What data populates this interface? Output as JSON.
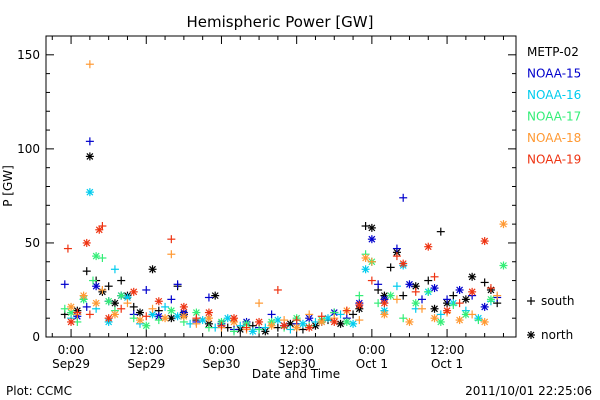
{
  "chart_data": {
    "type": "scatter",
    "title": "Hemispheric Power [GW]",
    "ylabel": "P [GW]",
    "xlabel": "Date and Time",
    "ylim": [
      0,
      160
    ],
    "yticks": [
      0,
      50,
      100,
      150
    ],
    "xlim": [
      -4,
      71
    ],
    "xticks": [
      {
        "x": 0,
        "time": "0:00",
        "date": "Sep29"
      },
      {
        "x": 12,
        "time": "12:00",
        "date": "Sep29"
      },
      {
        "x": 24,
        "time": "0:00",
        "date": "Sep30"
      },
      {
        "x": 36,
        "time": "12:00",
        "date": "Sep30"
      },
      {
        "x": 48,
        "time": "0:00",
        "date": "Oct 1"
      },
      {
        "x": 60,
        "time": "12:00",
        "date": "Oct 1"
      }
    ],
    "x_units": "hours from 2011-09-29 00:00 UT",
    "markers_legend": [
      {
        "symbol": "+",
        "label": "south"
      },
      {
        "symbol": "*",
        "label": "north"
      }
    ],
    "series": [
      {
        "name": "METP-02",
        "color": "#000000",
        "points": [
          [
            -1,
            12,
            "s"
          ],
          [
            1,
            14,
            "n"
          ],
          [
            2.5,
            35,
            "s"
          ],
          [
            3,
            96,
            "n"
          ],
          [
            4,
            30,
            "s"
          ],
          [
            5,
            24,
            "n"
          ],
          [
            6,
            27,
            "s"
          ],
          [
            7,
            18,
            "n"
          ],
          [
            8,
            30,
            "s"
          ],
          [
            9,
            22,
            "n"
          ],
          [
            10,
            16,
            "s"
          ],
          [
            11,
            13,
            "n"
          ],
          [
            13,
            36,
            "n"
          ],
          [
            14,
            14,
            "s"
          ],
          [
            16,
            10,
            "n"
          ],
          [
            17,
            27,
            "s"
          ],
          [
            18,
            12,
            "n"
          ],
          [
            20,
            9,
            "s"
          ],
          [
            22,
            7,
            "n"
          ],
          [
            23,
            22,
            "n"
          ],
          [
            25,
            5,
            "s"
          ],
          [
            27,
            4,
            "n"
          ],
          [
            29,
            6,
            "s"
          ],
          [
            31,
            3,
            "n"
          ],
          [
            33,
            5,
            "s"
          ],
          [
            35,
            7,
            "n"
          ],
          [
            37,
            4,
            "s"
          ],
          [
            39,
            6,
            "n"
          ],
          [
            41,
            9,
            "s"
          ],
          [
            43,
            7,
            "n"
          ],
          [
            45,
            12,
            "s"
          ],
          [
            46,
            15,
            "n"
          ],
          [
            47,
            59,
            "s"
          ],
          [
            48,
            58,
            "n"
          ],
          [
            49,
            25,
            "s"
          ],
          [
            50,
            22,
            "n"
          ],
          [
            51,
            37,
            "s"
          ],
          [
            52,
            45,
            "n"
          ],
          [
            53,
            22,
            "s"
          ],
          [
            55,
            27,
            "n"
          ],
          [
            57,
            30,
            "s"
          ],
          [
            58,
            15,
            "n"
          ],
          [
            59,
            56,
            "s"
          ],
          [
            60,
            18,
            "n"
          ],
          [
            61,
            22,
            "s"
          ],
          [
            63,
            20,
            "n"
          ],
          [
            64,
            32,
            "n"
          ],
          [
            66,
            29,
            "s"
          ],
          [
            67,
            25,
            "n"
          ],
          [
            68,
            18,
            "s"
          ]
        ]
      },
      {
        "name": "NOAA-15",
        "color": "#0000cc",
        "points": [
          [
            -1,
            28,
            "s"
          ],
          [
            1,
            11,
            "n"
          ],
          [
            2.5,
            16,
            "s"
          ],
          [
            3,
            104,
            "s"
          ],
          [
            4,
            27,
            "n"
          ],
          [
            6,
            19,
            "s"
          ],
          [
            8,
            22,
            "n"
          ],
          [
            10,
            12,
            "s"
          ],
          [
            12,
            25,
            "s"
          ],
          [
            14,
            11,
            "n"
          ],
          [
            16,
            20,
            "s"
          ],
          [
            17,
            28,
            "s"
          ],
          [
            18,
            13,
            "n"
          ],
          [
            20,
            8,
            "s"
          ],
          [
            22,
            21,
            "s"
          ],
          [
            24,
            7,
            "n"
          ],
          [
            26,
            4,
            "s"
          ],
          [
            28,
            8,
            "n"
          ],
          [
            30,
            5,
            "s"
          ],
          [
            32,
            12,
            "s"
          ],
          [
            34,
            6,
            "n"
          ],
          [
            36,
            7,
            "s"
          ],
          [
            38,
            10,
            "n"
          ],
          [
            40,
            8,
            "s"
          ],
          [
            42,
            13,
            "n"
          ],
          [
            44,
            10,
            "s"
          ],
          [
            46,
            18,
            "n"
          ],
          [
            48,
            52,
            "n"
          ],
          [
            49,
            28,
            "s"
          ],
          [
            50,
            20,
            "n"
          ],
          [
            52,
            47,
            "s"
          ],
          [
            53,
            74,
            "s"
          ],
          [
            54,
            28,
            "n"
          ],
          [
            56,
            20,
            "s"
          ],
          [
            58,
            26,
            "n"
          ],
          [
            60,
            20,
            "s"
          ],
          [
            62,
            25,
            "n"
          ],
          [
            64,
            22,
            "s"
          ],
          [
            66,
            16,
            "n"
          ],
          [
            68,
            21,
            "s"
          ]
        ]
      },
      {
        "name": "NOAA-16",
        "color": "#00ccee",
        "points": [
          [
            0,
            10,
            "s"
          ],
          [
            2,
            20,
            "n"
          ],
          [
            3,
            77,
            "n"
          ],
          [
            4,
            15,
            "s"
          ],
          [
            6,
            8,
            "n"
          ],
          [
            7,
            36,
            "s"
          ],
          [
            9,
            21,
            "n"
          ],
          [
            11,
            7,
            "s"
          ],
          [
            13,
            12,
            "n"
          ],
          [
            15,
            16,
            "s"
          ],
          [
            17,
            11,
            "n"
          ],
          [
            19,
            7,
            "s"
          ],
          [
            21,
            9,
            "n"
          ],
          [
            23,
            5,
            "s"
          ],
          [
            25,
            10,
            "n"
          ],
          [
            27,
            6,
            "s"
          ],
          [
            29,
            3,
            "n"
          ],
          [
            31,
            5,
            "s"
          ],
          [
            33,
            9,
            "n"
          ],
          [
            35,
            4,
            "s"
          ],
          [
            37,
            7,
            "n"
          ],
          [
            39,
            8,
            "s"
          ],
          [
            41,
            10,
            "n"
          ],
          [
            43,
            12,
            "s"
          ],
          [
            45,
            7,
            "n"
          ],
          [
            47,
            36,
            "n"
          ],
          [
            48,
            40,
            "s"
          ],
          [
            50,
            14,
            "n"
          ],
          [
            52,
            27,
            "s"
          ],
          [
            53,
            38,
            "n"
          ],
          [
            55,
            15,
            "s"
          ],
          [
            57,
            24,
            "n"
          ],
          [
            59,
            12,
            "s"
          ],
          [
            61,
            18,
            "n"
          ],
          [
            63,
            14,
            "s"
          ],
          [
            65,
            10,
            "n"
          ],
          [
            67,
            19,
            "s"
          ]
        ]
      },
      {
        "name": "NOAA-17",
        "color": "#33ee77",
        "points": [
          [
            -1,
            15,
            "s"
          ],
          [
            0,
            13,
            "n"
          ],
          [
            1,
            8,
            "s"
          ],
          [
            2,
            20,
            "n"
          ],
          [
            3.5,
            30,
            "s"
          ],
          [
            4,
            43,
            "n"
          ],
          [
            5,
            42,
            "s"
          ],
          [
            6,
            19,
            "n"
          ],
          [
            7,
            14,
            "s"
          ],
          [
            8,
            22,
            "n"
          ],
          [
            10,
            10,
            "s"
          ],
          [
            12,
            6,
            "n"
          ],
          [
            14,
            9,
            "s"
          ],
          [
            16,
            14,
            "n"
          ],
          [
            18,
            8,
            "s"
          ],
          [
            20,
            13,
            "n"
          ],
          [
            22,
            5,
            "s"
          ],
          [
            24,
            8,
            "n"
          ],
          [
            26,
            3,
            "s"
          ],
          [
            28,
            7,
            "n"
          ],
          [
            30,
            4,
            "s"
          ],
          [
            32,
            8,
            "n"
          ],
          [
            34,
            5,
            "s"
          ],
          [
            36,
            10,
            "n"
          ],
          [
            38,
            6,
            "s"
          ],
          [
            40,
            9,
            "n"
          ],
          [
            42,
            13,
            "s"
          ],
          [
            44,
            8,
            "n"
          ],
          [
            46,
            22,
            "s"
          ],
          [
            47,
            44,
            "s"
          ],
          [
            48,
            40,
            "n"
          ],
          [
            49,
            18,
            "s"
          ],
          [
            51,
            22,
            "n"
          ],
          [
            53,
            10,
            "s"
          ],
          [
            55,
            18,
            "n"
          ],
          [
            57,
            24,
            "s"
          ],
          [
            59,
            8,
            "n"
          ],
          [
            61,
            17,
            "s"
          ],
          [
            63,
            12,
            "n"
          ],
          [
            65,
            9,
            "s"
          ],
          [
            67,
            20,
            "n"
          ],
          [
            69,
            38,
            "n"
          ]
        ]
      },
      {
        "name": "NOAA-18",
        "color": "#ff9933",
        "points": [
          [
            0,
            16,
            "n"
          ],
          [
            1,
            12,
            "s"
          ],
          [
            2,
            22,
            "n"
          ],
          [
            3,
            145,
            "s"
          ],
          [
            4,
            18,
            "n"
          ],
          [
            5,
            25,
            "s"
          ],
          [
            7,
            12,
            "n"
          ],
          [
            9,
            18,
            "s"
          ],
          [
            11,
            9,
            "n"
          ],
          [
            13,
            15,
            "s"
          ],
          [
            15,
            10,
            "n"
          ],
          [
            16,
            44,
            "s"
          ],
          [
            18,
            11,
            "n"
          ],
          [
            20,
            7,
            "s"
          ],
          [
            22,
            10,
            "n"
          ],
          [
            24,
            5,
            "s"
          ],
          [
            26,
            8,
            "n"
          ],
          [
            28,
            4,
            "s"
          ],
          [
            30,
            18,
            "s"
          ],
          [
            32,
            6,
            "n"
          ],
          [
            34,
            9,
            "s"
          ],
          [
            36,
            5,
            "n"
          ],
          [
            38,
            12,
            "s"
          ],
          [
            40,
            8,
            "n"
          ],
          [
            42,
            10,
            "s"
          ],
          [
            44,
            14,
            "n"
          ],
          [
            46,
            9,
            "s"
          ],
          [
            47,
            42,
            "n"
          ],
          [
            48,
            40,
            "s"
          ],
          [
            50,
            12,
            "n"
          ],
          [
            52,
            20,
            "s"
          ],
          [
            54,
            8,
            "n"
          ],
          [
            56,
            15,
            "s"
          ],
          [
            58,
            10,
            "n"
          ],
          [
            60,
            13,
            "s"
          ],
          [
            62,
            9,
            "n"
          ],
          [
            64,
            12,
            "s"
          ],
          [
            66,
            8,
            "n"
          ],
          [
            68,
            22,
            "s"
          ],
          [
            69,
            60,
            "n"
          ]
        ]
      },
      {
        "name": "NOAA-19",
        "color": "#ee3311",
        "points": [
          [
            -0.5,
            47,
            "s"
          ],
          [
            0,
            8,
            "n"
          ],
          [
            1,
            13,
            "s"
          ],
          [
            2.5,
            50,
            "n"
          ],
          [
            3,
            12,
            "s"
          ],
          [
            4.5,
            57,
            "n"
          ],
          [
            5,
            59,
            "s"
          ],
          [
            6,
            10,
            "n"
          ],
          [
            8,
            15,
            "s"
          ],
          [
            10,
            24,
            "n"
          ],
          [
            12,
            11,
            "s"
          ],
          [
            14,
            19,
            "n"
          ],
          [
            16,
            52,
            "s"
          ],
          [
            18,
            16,
            "n"
          ],
          [
            20,
            10,
            "s"
          ],
          [
            22,
            13,
            "n"
          ],
          [
            24,
            6,
            "s"
          ],
          [
            26,
            10,
            "n"
          ],
          [
            28,
            5,
            "s"
          ],
          [
            30,
            8,
            "n"
          ],
          [
            33,
            25,
            "s"
          ],
          [
            34,
            6,
            "n"
          ],
          [
            36,
            9,
            "s"
          ],
          [
            38,
            5,
            "n"
          ],
          [
            40,
            11,
            "s"
          ],
          [
            42,
            8,
            "n"
          ],
          [
            44,
            14,
            "s"
          ],
          [
            46,
            17,
            "n"
          ],
          [
            48,
            30,
            "s"
          ],
          [
            50,
            18,
            "n"
          ],
          [
            52,
            43,
            "s"
          ],
          [
            53,
            39,
            "n"
          ],
          [
            55,
            24,
            "s"
          ],
          [
            57,
            48,
            "n"
          ],
          [
            58,
            32,
            "s"
          ],
          [
            60,
            14,
            "n"
          ],
          [
            62,
            18,
            "s"
          ],
          [
            64,
            24,
            "n"
          ],
          [
            66,
            51,
            "n"
          ],
          [
            67,
            26,
            "s"
          ]
        ]
      }
    ]
  },
  "footer": {
    "source": "Plot: CCMC",
    "timestamp": "2011/10/01 22:25:06"
  }
}
